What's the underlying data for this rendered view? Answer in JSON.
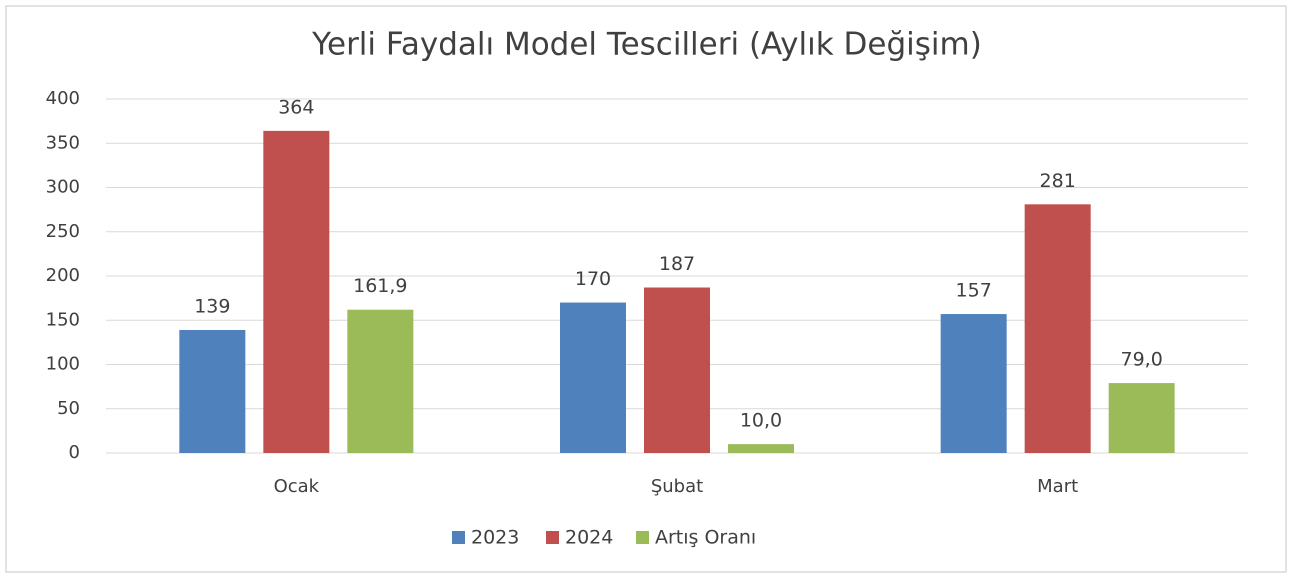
{
  "chart_data": {
    "type": "bar",
    "title": "Yerli Faydalı Model Tescilleri (Aylık Değişim)",
    "categories": [
      "Ocak",
      "Şubat",
      "Mart"
    ],
    "series": [
      {
        "name": "2023",
        "color": "#4f81bd",
        "values": [
          139,
          170,
          157
        ]
      },
      {
        "name": "2024",
        "color": "#c0504d",
        "values": [
          364,
          187,
          281
        ]
      },
      {
        "name": "Artış Oranı",
        "color": "#9bbb59",
        "values": [
          161.9,
          10.0,
          79.0
        ],
        "value_labels": [
          "161,9",
          "10,0",
          "79,0"
        ]
      }
    ],
    "ylim": [
      0,
      400
    ],
    "yticks": [
      0,
      50,
      100,
      150,
      200,
      250,
      300,
      350,
      400
    ],
    "grid": true,
    "legend": "bottom"
  }
}
